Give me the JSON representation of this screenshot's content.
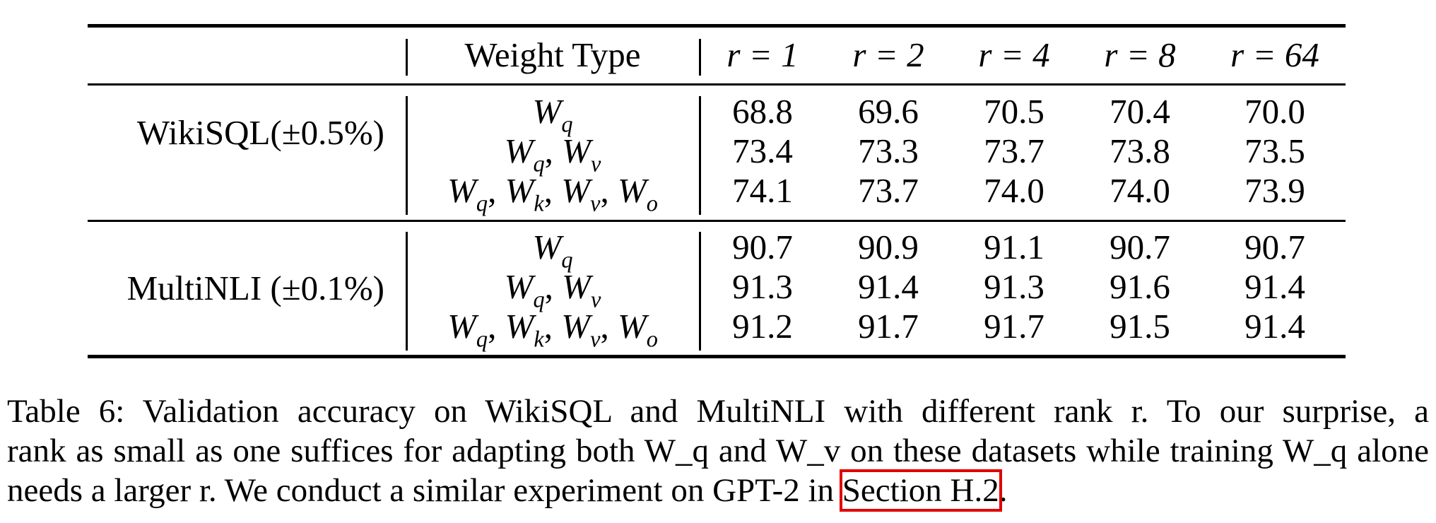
{
  "table": {
    "header": {
      "weight_type": "Weight Type",
      "ranks": [
        "r = 1",
        "r = 2",
        "r = 4",
        "r = 8",
        "r = 64"
      ]
    },
    "groups": [
      {
        "dataset": "WikiSQL(±0.5%)",
        "rows": [
          {
            "weights": "W_q",
            "values": [
              "68.8",
              "69.6",
              "70.5",
              "70.4",
              "70.0"
            ]
          },
          {
            "weights": "W_q, W_v",
            "values": [
              "73.4",
              "73.3",
              "73.7",
              "73.8",
              "73.5"
            ]
          },
          {
            "weights": "W_q, W_k, W_v, W_o",
            "values": [
              "74.1",
              "73.7",
              "74.0",
              "74.0",
              "73.9"
            ]
          }
        ]
      },
      {
        "dataset": "MultiNLI (±0.1%)",
        "rows": [
          {
            "weights": "W_q",
            "values": [
              "90.7",
              "90.9",
              "91.1",
              "90.7",
              "90.7"
            ]
          },
          {
            "weights": "W_q, W_v",
            "values": [
              "91.3",
              "91.4",
              "91.3",
              "91.6",
              "91.4"
            ]
          },
          {
            "weights": "W_q, W_k, W_v, W_o",
            "values": [
              "91.2",
              "91.7",
              "91.7",
              "91.5",
              "91.4"
            ]
          }
        ]
      }
    ]
  },
  "caption": {
    "line1": "Table 6: Validation accuracy on WikiSQL and MultiNLI with different rank r. To our surprise, a",
    "line2": "rank as small as one suffices for adapting both W_q and W_v on these datasets while training W_q alone",
    "line3_before": "needs a larger r. We conduct a similar experiment on GPT-2 in ",
    "line3_link": "Section H.2",
    "line3_after": ".",
    "link_highlight_color": "#e00000"
  }
}
